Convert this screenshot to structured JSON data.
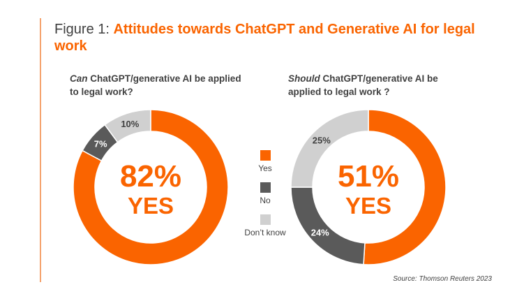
{
  "figure": {
    "prefix": "Figure 1: ",
    "title": "Attitudes towards ChatGPT and Generative AI for legal work"
  },
  "colors": {
    "yes": "#fa6400",
    "no": "#5a5a5a",
    "dont_know": "#d0d0d0",
    "accent": "#f5a36e"
  },
  "chart_data": [
    {
      "type": "pie",
      "variant": "donut",
      "question_emphasis": "Can",
      "question_rest": " ChatGPT/generative AI be applied to legal work?",
      "center_value": "82%",
      "center_label": "YES",
      "categories": [
        "Yes",
        "No",
        "Don’t know"
      ],
      "values": [
        82,
        7,
        10
      ],
      "labels": [
        "",
        "7%",
        "10%"
      ]
    },
    {
      "type": "pie",
      "variant": "donut",
      "question_emphasis": "Should",
      "question_rest": " ChatGPT/generative AI be applied to legal work ?",
      "center_value": "51%",
      "center_label": "YES",
      "categories": [
        "Yes",
        "No",
        "Don’t know"
      ],
      "values": [
        51,
        24,
        25
      ],
      "labels": [
        "",
        "24%",
        "25%"
      ]
    }
  ],
  "legend": [
    {
      "label": "Yes",
      "color_key": "yes"
    },
    {
      "label": "No",
      "color_key": "no"
    },
    {
      "label": "Don’t know",
      "color_key": "dont_know"
    }
  ],
  "source": "Source: Thomson Reuters 2023"
}
